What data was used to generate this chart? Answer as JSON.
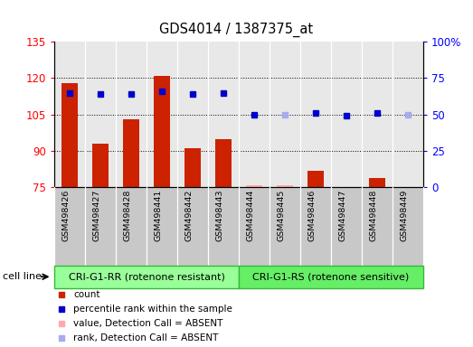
{
  "title": "GDS4014 / 1387375_at",
  "samples": [
    "GSM498426",
    "GSM498427",
    "GSM498428",
    "GSM498441",
    "GSM498442",
    "GSM498443",
    "GSM498444",
    "GSM498445",
    "GSM498446",
    "GSM498447",
    "GSM498448",
    "GSM498449"
  ],
  "counts": [
    118,
    93,
    103,
    121,
    91,
    95,
    76,
    76,
    82,
    75,
    79,
    75
  ],
  "ranks": [
    65,
    64,
    64,
    66,
    64,
    65,
    50,
    50,
    51,
    49,
    51,
    50
  ],
  "count_absent": [
    false,
    false,
    false,
    false,
    false,
    false,
    true,
    true,
    false,
    true,
    false,
    true
  ],
  "rank_absent": [
    false,
    false,
    false,
    false,
    false,
    false,
    false,
    true,
    false,
    false,
    false,
    true
  ],
  "group1_count": 6,
  "group2_count": 6,
  "group1_label": "CRI-G1-RR (rotenone resistant)",
  "group2_label": "CRI-G1-RS (rotenone sensitive)",
  "cell_line_label": "cell line",
  "ylim_left": [
    75,
    135
  ],
  "ylim_right": [
    0,
    100
  ],
  "yticks_left": [
    75,
    90,
    105,
    120,
    135
  ],
  "yticks_right": [
    0,
    25,
    50,
    75,
    100
  ],
  "ytick_labels_left": [
    "75",
    "90",
    "105",
    "120",
    "135"
  ],
  "ytick_labels_right": [
    "0",
    "25",
    "50",
    "75",
    "100%"
  ],
  "bar_color_present": "#cc2200",
  "bar_color_absent": "#ffaaaa",
  "dot_color_present": "#0000cc",
  "dot_color_absent": "#aaaaee",
  "bg_color_plot": "#e8e8e8",
  "bg_color_xtick": "#c8c8c8",
  "bg_color_group1": "#99ff99",
  "bg_color_group2": "#66ee66",
  "group_box_color": "#33bb33",
  "legend_items": [
    {
      "color": "#cc2200",
      "label": "count"
    },
    {
      "color": "#0000cc",
      "label": "percentile rank within the sample"
    },
    {
      "color": "#ffaaaa",
      "label": "value, Detection Call = ABSENT"
    },
    {
      "color": "#aaaaee",
      "label": "rank, Detection Call = ABSENT"
    }
  ]
}
